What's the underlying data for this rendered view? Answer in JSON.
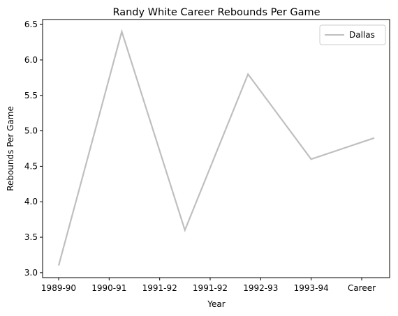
{
  "chart_data": {
    "type": "line",
    "title": "Randy White  Career Rebounds Per Game",
    "xlabel": "Year",
    "ylabel": "Rebounds Per Game",
    "x_tick_labels": [
      "1989-90",
      "1990-91",
      "1991-92",
      "1991-92",
      "1992-93",
      "1993-94",
      "Career"
    ],
    "y_ticks": [
      "3.0",
      "3.5",
      "4.0",
      "4.5",
      "5.0",
      "5.5",
      "6.0",
      "6.5"
    ],
    "ylim": [
      2.93,
      6.57
    ],
    "grid": false,
    "legend_position": "top-right",
    "series": [
      {
        "name": "Dallas",
        "color": "#bfbfbf",
        "values": [
          3.1,
          6.4,
          3.6,
          5.8,
          4.6,
          4.9
        ]
      }
    ]
  }
}
